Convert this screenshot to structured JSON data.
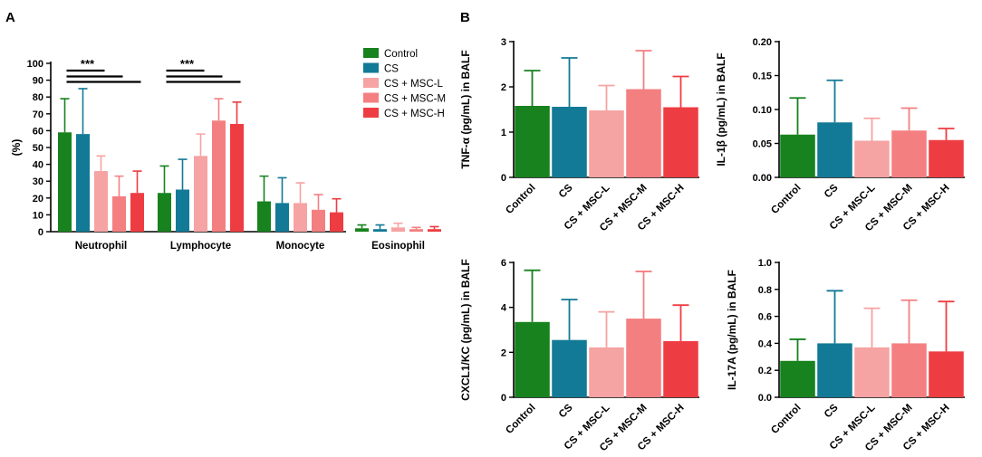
{
  "panel_labels": [
    "A",
    "B"
  ],
  "colors": {
    "Control": "#18821e",
    "CS": "#127a96",
    "CS + MSC-L": "#f6a3a3",
    "CS + MSC-M": "#f47f80",
    "CS + MSC-H": "#ee3d42"
  },
  "legend": [
    "Control",
    "CS",
    "CS + MSC-L",
    "CS + MSC-M",
    "CS + MSC-H"
  ],
  "chart_data": [
    {
      "id": "A",
      "type": "bar",
      "ylabel": "(%)",
      "ylim": [
        0,
        100
      ],
      "yticks": [
        0,
        10,
        20,
        30,
        40,
        50,
        60,
        70,
        80,
        90,
        100
      ],
      "categories": [
        "Neutrophil",
        "Lymphocyte",
        "Monocyte",
        "Eosinophil"
      ],
      "series": [
        {
          "name": "Control",
          "values": [
            59,
            23,
            18,
            2
          ],
          "errors": [
            20,
            16,
            15,
            2
          ]
        },
        {
          "name": "CS",
          "values": [
            58,
            25,
            17,
            1.5
          ],
          "errors": [
            27,
            18,
            15,
            2.5
          ]
        },
        {
          "name": "CS + MSC-L",
          "values": [
            36,
            45,
            17,
            2.5
          ],
          "errors": [
            9,
            13,
            12,
            2.5
          ]
        },
        {
          "name": "CS + MSC-M",
          "values": [
            21,
            66,
            13,
            1.5
          ],
          "errors": [
            12,
            13,
            9,
            1
          ]
        },
        {
          "name": "CS + MSC-H",
          "values": [
            23,
            64,
            11.5,
            1.5
          ],
          "errors": [
            13,
            13,
            8,
            1.5
          ]
        }
      ],
      "significance": [
        {
          "category": "Neutrophil",
          "from": 0,
          "to": 2,
          "label": "***"
        },
        {
          "category": "Neutrophil",
          "from": 0,
          "to": 3,
          "label": ""
        },
        {
          "category": "Neutrophil",
          "from": 0,
          "to": 4,
          "label": ""
        },
        {
          "category": "Lymphocyte",
          "from": 0,
          "to": 2,
          "label": "***"
        },
        {
          "category": "Lymphocyte",
          "from": 0,
          "to": 3,
          "label": ""
        },
        {
          "category": "Lymphocyte",
          "from": 0,
          "to": 4,
          "label": ""
        }
      ]
    },
    {
      "id": "B1",
      "type": "bar",
      "ylabel": "TNF-α (pg/mL) in BALF",
      "ylim": [
        0,
        3
      ],
      "yticks": [
        0,
        1,
        2,
        3
      ],
      "decimals": 0,
      "categories": [
        "Control",
        "CS",
        "CS + MSC-L",
        "CS + MSC-M",
        "CS + MSC-H"
      ],
      "values": [
        1.58,
        1.56,
        1.48,
        1.95,
        1.55
      ],
      "errors": [
        0.78,
        1.08,
        0.55,
        0.85,
        0.68
      ]
    },
    {
      "id": "B2",
      "type": "bar",
      "ylabel": "IL-1β (pg/mL) in BALF",
      "ylim": [
        0,
        0.2
      ],
      "yticks": [
        0,
        0.05,
        0.1,
        0.15,
        0.2
      ],
      "decimals": 2,
      "categories": [
        "Control",
        "CS",
        "CS + MSC-L",
        "CS + MSC-M",
        "CS + MSC-H"
      ],
      "values": [
        0.063,
        0.081,
        0.054,
        0.069,
        0.055
      ],
      "errors": [
        0.054,
        0.062,
        0.033,
        0.033,
        0.017
      ]
    },
    {
      "id": "B3",
      "type": "bar",
      "ylabel": "CXCL1/KC (pg/mL) in BALF",
      "ylim": [
        0,
        6
      ],
      "yticks": [
        0,
        2,
        4,
        6
      ],
      "decimals": 0,
      "categories": [
        "Control",
        "CS",
        "CS + MSC-L",
        "CS + MSC-M",
        "CS + MSC-H"
      ],
      "values": [
        3.35,
        2.55,
        2.22,
        3.5,
        2.5
      ],
      "errors": [
        2.3,
        1.8,
        1.58,
        2.1,
        1.6
      ]
    },
    {
      "id": "B4",
      "type": "bar",
      "ylabel": "IL-17A (pg/mL) in BALF",
      "ylim": [
        0,
        1.0
      ],
      "yticks": [
        0,
        0.2,
        0.4,
        0.6,
        0.8,
        1.0
      ],
      "decimals": 1,
      "categories": [
        "Control",
        "CS",
        "CS + MSC-L",
        "CS + MSC-M",
        "CS + MSC-H"
      ],
      "values": [
        0.27,
        0.4,
        0.37,
        0.4,
        0.34
      ],
      "errors": [
        0.16,
        0.39,
        0.29,
        0.32,
        0.37
      ]
    }
  ]
}
